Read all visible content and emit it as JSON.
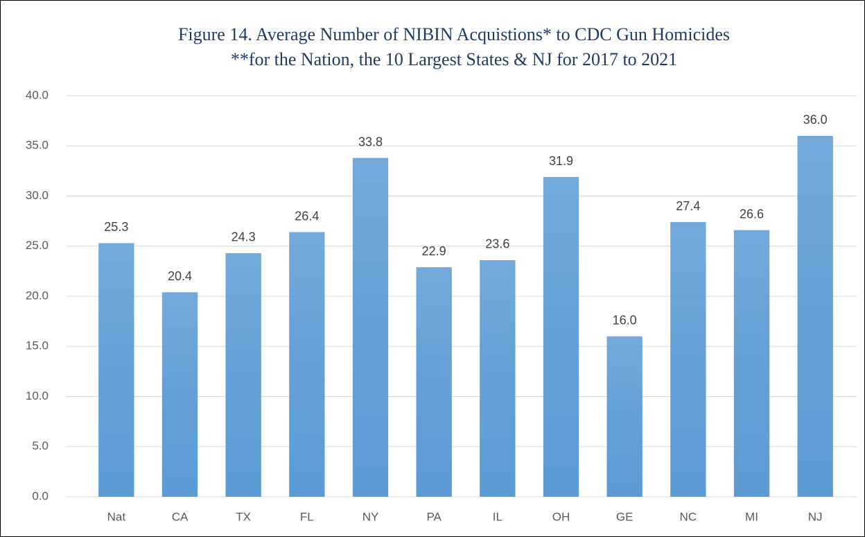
{
  "chart_data": {
    "type": "bar",
    "title": [
      "Figure 14. Average Number of NIBIN Acquistions* to CDC Gun Homicides",
      "**for the Nation, the 10 Largest States & NJ for 2017 to 2021"
    ],
    "categories": [
      "Nat",
      "CA",
      "TX",
      "FL",
      "NY",
      "PA",
      "IL",
      "OH",
      "GE",
      "NC",
      "MI",
      "NJ"
    ],
    "values": [
      25.3,
      20.4,
      24.3,
      26.4,
      33.8,
      22.9,
      23.6,
      31.9,
      16.0,
      27.4,
      26.6,
      36.0
    ],
    "value_labels": [
      "25.3",
      "20.4",
      "24.3",
      "26.4",
      "33.8",
      "22.9",
      "23.6",
      "31.9",
      "16.0",
      "27.4",
      "26.6",
      "36.0"
    ],
    "color": "#5b9bd5",
    "ylim": [
      0,
      40
    ],
    "yticks": [
      {
        "value": 0,
        "label": "0.0"
      },
      {
        "value": 5,
        "label": "5.0"
      },
      {
        "value": 10,
        "label": "10.0"
      },
      {
        "value": 15,
        "label": "15.0"
      },
      {
        "value": 20,
        "label": "20.0"
      },
      {
        "value": 25,
        "label": "25.0"
      },
      {
        "value": 30,
        "label": "30.0"
      },
      {
        "value": 35,
        "label": "35.0"
      },
      {
        "value": 40,
        "label": "40.0"
      }
    ],
    "grid": true
  }
}
